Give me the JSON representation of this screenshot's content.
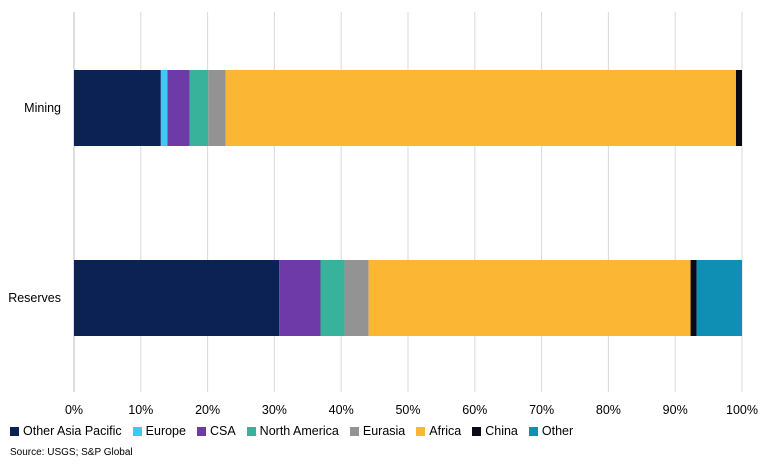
{
  "chart_data": {
    "type": "bar",
    "orientation": "horizontal",
    "stacked": true,
    "title": "",
    "xlabel": "",
    "ylabel": "",
    "xlim": [
      0,
      100
    ],
    "grid": true,
    "legend_position": "bottom",
    "categories": [
      "Mining",
      "Reserves"
    ],
    "x_ticks": [
      "0%",
      "10%",
      "20%",
      "30%",
      "40%",
      "50%",
      "60%",
      "70%",
      "80%",
      "90%",
      "100%"
    ],
    "series": [
      {
        "name": "Other Asia Pacific",
        "color": "#0c2254",
        "values": [
          13.0,
          30.7
        ]
      },
      {
        "name": "Europe",
        "color": "#3fc8f4",
        "values": [
          1.0,
          0.0
        ]
      },
      {
        "name": "CSA",
        "color": "#6d3aa7",
        "values": [
          3.3,
          6.2
        ]
      },
      {
        "name": "North America",
        "color": "#38b29a",
        "values": [
          2.8,
          3.6
        ]
      },
      {
        "name": "Eurasia",
        "color": "#939393",
        "values": [
          2.6,
          3.6
        ]
      },
      {
        "name": "Africa",
        "color": "#fbb734",
        "values": [
          76.4,
          48.2
        ]
      },
      {
        "name": "China",
        "color": "#0a0a14",
        "values": [
          0.9,
          0.9
        ]
      },
      {
        "name": "Other",
        "color": "#0f8fb3",
        "values": [
          0.0,
          6.8
        ]
      }
    ]
  },
  "source": "Source: USGS; S&P Global"
}
